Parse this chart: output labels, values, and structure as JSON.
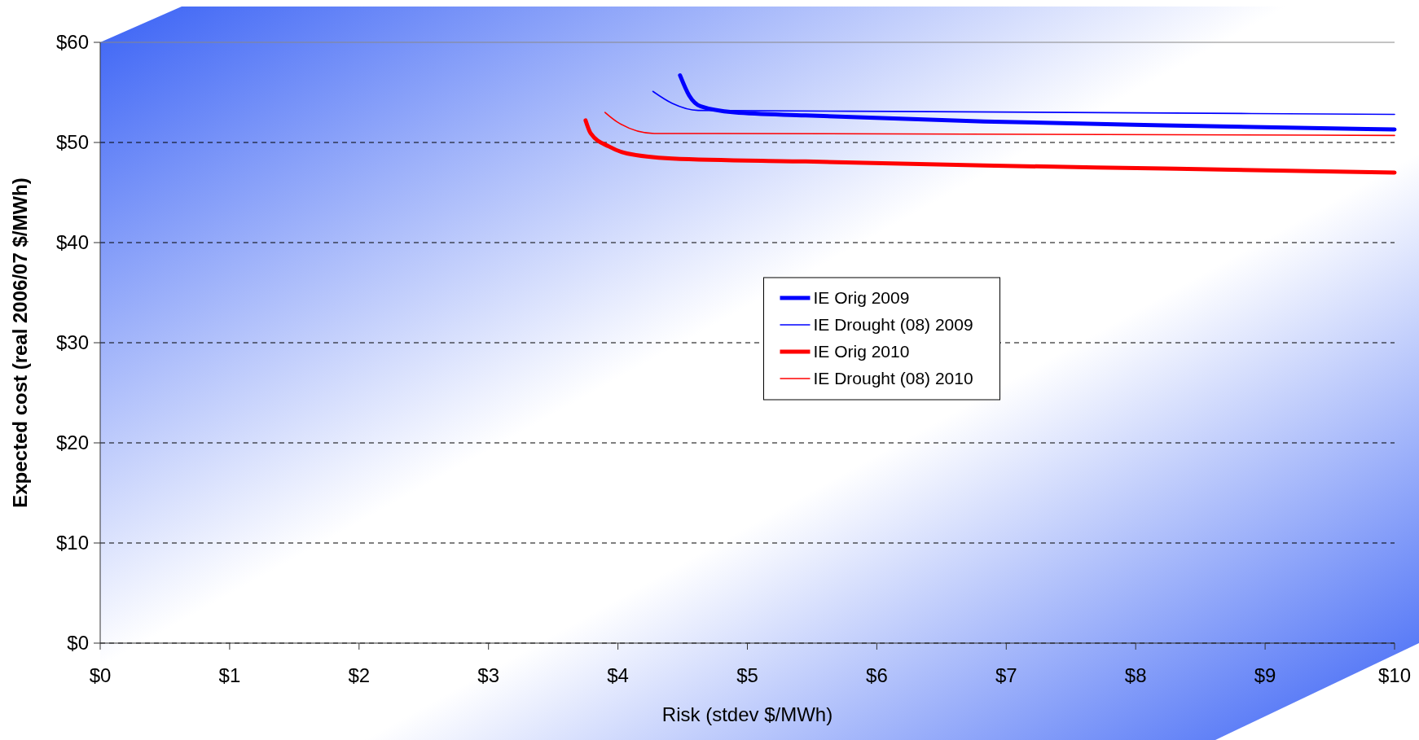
{
  "chart_data": {
    "type": "line",
    "xlabel": "Risk (stdev $/MWh)",
    "ylabel": "Expected cost (real 2006/07 $/MWh)",
    "xlim": [
      0,
      10
    ],
    "xticks": [
      {
        "value": 0,
        "label": "$0"
      },
      {
        "value": 1,
        "label": "$1"
      },
      {
        "value": 2,
        "label": "$2"
      },
      {
        "value": 3,
        "label": "$3"
      },
      {
        "value": 4,
        "label": "$4"
      },
      {
        "value": 5,
        "label": "$5"
      },
      {
        "value": 6,
        "label": "$6"
      },
      {
        "value": 7,
        "label": "$7"
      },
      {
        "value": 8,
        "label": "$8"
      },
      {
        "value": 9,
        "label": "$9"
      },
      {
        "value": 10,
        "label": "$10"
      }
    ],
    "ylim": [
      0,
      60
    ],
    "yticks": [
      {
        "value": 0,
        "label": "$0"
      },
      {
        "value": 10,
        "label": "$10"
      },
      {
        "value": 20,
        "label": "$20"
      },
      {
        "value": 30,
        "label": "$30"
      },
      {
        "value": 40,
        "label": "$40"
      },
      {
        "value": 50,
        "label": "$50"
      },
      {
        "value": 60,
        "label": "$60"
      }
    ],
    "grid": "y",
    "legend": "center",
    "marker": "none",
    "line_style": "solid",
    "series": [
      {
        "name": "IE Orig 2009",
        "color": "#0000ff",
        "x": [
          4.48,
          4.55,
          4.64,
          4.9,
          5.45,
          6.83,
          8.22,
          10
        ],
        "values": [
          56.7,
          54.7,
          53.6,
          53.0,
          52.7,
          52.1,
          51.7,
          51.3
        ]
      },
      {
        "name": "IE Drought (08) 2009",
        "color": "#0000ff",
        "x": [
          4.27,
          4.42,
          4.62,
          6.14,
          10
        ],
        "values": [
          55.1,
          53.9,
          53.2,
          53.1,
          52.8
        ]
      },
      {
        "name": "IE Orig 2010",
        "color": "#ff0000",
        "x": [
          3.75,
          3.79,
          3.93,
          4.07,
          4.42,
          5.45,
          6.83,
          8.22,
          10
        ],
        "values": [
          52.2,
          50.9,
          49.6,
          48.9,
          48.4,
          48.1,
          47.7,
          47.4,
          47.0
        ]
      },
      {
        "name": "IE Drought (08) 2010",
        "color": "#ff0000",
        "x": [
          3.9,
          4.0,
          4.28,
          4.76,
          10
        ],
        "values": [
          53.0,
          52.0,
          50.9,
          50.9,
          50.7
        ]
      }
    ]
  }
}
